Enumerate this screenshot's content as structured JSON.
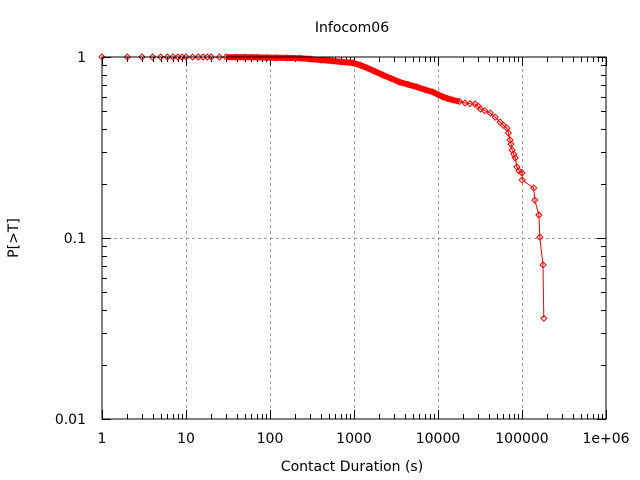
{
  "chart_data": {
    "type": "line",
    "title": "Infocom06",
    "xlabel": "Contact Duration (s)",
    "ylabel": "P[>T]",
    "xscale": "log",
    "yscale": "log",
    "xlim": [
      1,
      1000000
    ],
    "ylim": [
      0.01,
      1
    ],
    "x_ticks": [
      1,
      10,
      100,
      1000,
      10000,
      100000,
      1000000
    ],
    "x_tick_labels": [
      "1",
      "10",
      "100",
      "1000",
      "10000",
      "100000",
      "1e+06"
    ],
    "y_ticks": [
      0.01,
      0.1,
      1
    ],
    "y_tick_labels": [
      "0.01",
      "0.1",
      "1"
    ],
    "grid": true,
    "legend": null,
    "series": [
      {
        "name": "Infocom06",
        "color": "#ff0000",
        "marker": "diamond",
        "x": [
          1,
          2,
          3,
          4,
          5,
          6,
          7,
          8,
          9,
          10,
          12,
          14,
          16,
          18,
          20,
          25,
          30,
          40,
          50,
          60,
          70,
          93,
          120,
          160,
          230,
          300,
          400,
          560,
          700,
          980,
          1200,
          1440,
          1800,
          2200,
          2800,
          3500,
          4400,
          5600,
          7000,
          8700,
          10000,
          11500,
          13000,
          15000,
          18000,
          21000,
          24000,
          27500,
          30000,
          32000,
          36000,
          42000,
          48000,
          55000,
          60000,
          66000,
          69000,
          72000,
          74000,
          76000,
          80000,
          83000,
          87000,
          92000,
          100000,
          100500,
          138000,
          142000,
          159000,
          163000,
          178000,
          182000
        ],
        "y": [
          1.0,
          1.0,
          1.0,
          1.0,
          1.0,
          1.0,
          1.0,
          1.0,
          1.0,
          1.0,
          1.0,
          1.0,
          1.0,
          1.0,
          1.0,
          0.999,
          0.999,
          0.998,
          0.997,
          0.996,
          0.995,
          0.993,
          0.99,
          0.988,
          0.985,
          0.975,
          0.962,
          0.95,
          0.94,
          0.927,
          0.9,
          0.869,
          0.83,
          0.795,
          0.76,
          0.727,
          0.705,
          0.683,
          0.66,
          0.641,
          0.62,
          0.601,
          0.59,
          0.579,
          0.568,
          0.557,
          0.552,
          0.55,
          0.535,
          0.516,
          0.505,
          0.49,
          0.465,
          0.437,
          0.42,
          0.405,
          0.38,
          0.348,
          0.33,
          0.306,
          0.29,
          0.277,
          0.247,
          0.235,
          0.229,
          0.209,
          0.189,
          0.162,
          0.134,
          0.101,
          0.071,
          0.036
        ]
      }
    ]
  }
}
